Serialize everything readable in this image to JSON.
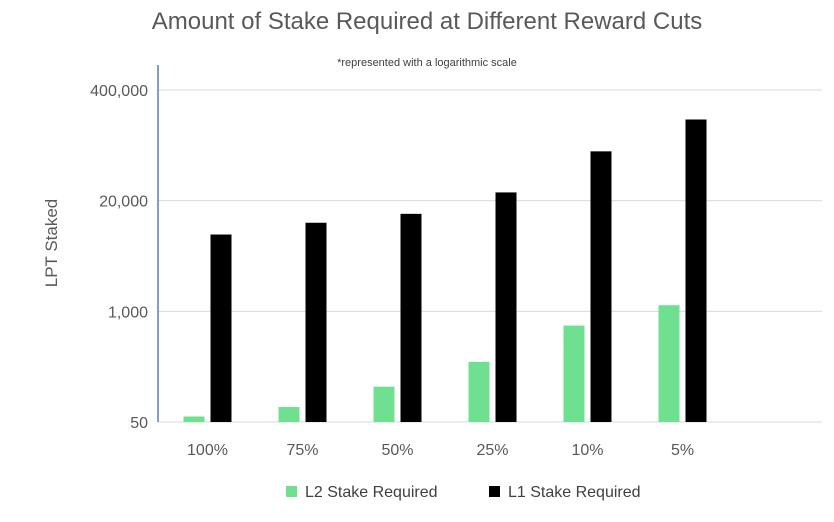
{
  "chart_data": {
    "type": "bar",
    "title": "Amount of Stake Required at Different Reward Cuts",
    "subtitle": "*represented with a logarithmic scale",
    "ylabel": "LPT Staked",
    "xlabel": "",
    "scale": "log",
    "ylim": [
      50,
      400000
    ],
    "ytick_values": [
      50,
      1000,
      20000,
      400000
    ],
    "ytick_labels": [
      "50",
      "1,000",
      "20,000",
      "400,000"
    ],
    "grid": true,
    "legend_position": "bottom",
    "categories": [
      "100%",
      "75%",
      "50%",
      "25%",
      "10%",
      "5%"
    ],
    "series": [
      {
        "name": "L2 Stake Required",
        "color": "#6fe08f",
        "values": [
          58,
          75,
          130,
          255,
          680,
          1180
        ]
      },
      {
        "name": "L1 Stake Required",
        "color": "#000000",
        "values": [
          8000,
          11000,
          14000,
          25000,
          76000,
          180000
        ]
      }
    ]
  }
}
